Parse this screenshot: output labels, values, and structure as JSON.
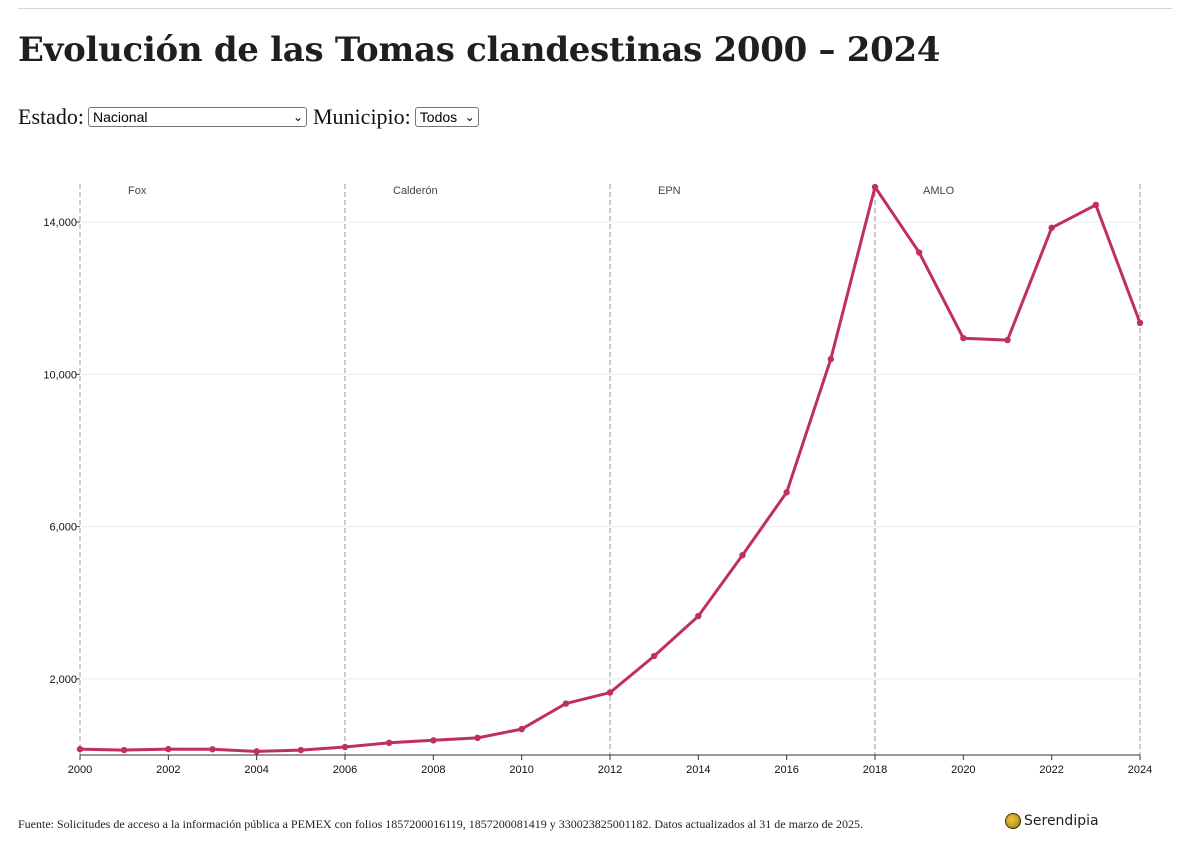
{
  "title": "Evolución de las Tomas clandestinas 2000 – 2024",
  "filters": {
    "estado_label": "Estado:",
    "estado_value": "Nacional",
    "municipio_label": "Municipio:",
    "municipio_value": "Todos"
  },
  "chart_data": {
    "type": "line",
    "x": [
      2000,
      2001,
      2002,
      2003,
      2004,
      2005,
      2006,
      2007,
      2008,
      2009,
      2010,
      2011,
      2012,
      2013,
      2014,
      2015,
      2016,
      2017,
      2018,
      2019,
      2020,
      2021,
      2022,
      2023,
      2024
    ],
    "series": [
      {
        "values": [
          155,
          130,
          155,
          150,
          95,
          130,
          210,
          320,
          385,
          450,
          680,
          1350,
          1640,
          2600,
          3650,
          5250,
          6900,
          10400,
          14920,
          13200,
          10950,
          10900,
          13850,
          14450,
          11350
        ]
      }
    ],
    "xlim": [
      2000,
      2024
    ],
    "ylim": [
      0,
      15000
    ],
    "x_ticks": [
      "2000",
      "2002",
      "2004",
      "2006",
      "2008",
      "2010",
      "2012",
      "2014",
      "2016",
      "2018",
      "2020",
      "2022",
      "2024"
    ],
    "y_ticks": [
      "2,000",
      "6,000",
      "10,000",
      "14,000"
    ],
    "y_tick_values": [
      2000,
      6000,
      10000,
      14000
    ],
    "x_tick_values": [
      2000,
      2002,
      2004,
      2006,
      2008,
      2010,
      2012,
      2014,
      2016,
      2018,
      2020,
      2022,
      2024
    ],
    "periods": [
      {
        "label": "Fox",
        "start": 2000
      },
      {
        "label": "Calderón",
        "start": 2006
      },
      {
        "label": "EPN",
        "start": 2012
      },
      {
        "label": "AMLO",
        "start": 2018
      }
    ],
    "period_boundaries": [
      2000,
      2006,
      2012,
      2018,
      2024
    ],
    "line_color": "#c0305e",
    "grid": true
  },
  "source": "Fuente: Solicitudes de acceso a la información pública a PEMEX con folios 1857200016119, 1857200081419 y 330023825001182. Datos actualizados al 31 de marzo de 2025.",
  "brand": "Serendipia"
}
